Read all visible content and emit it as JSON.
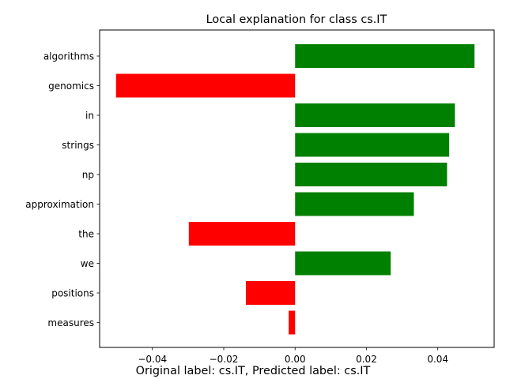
{
  "chart_data": {
    "type": "bar",
    "orientation": "horizontal",
    "title": "Local explanation for class cs.IT",
    "xlabel": "",
    "ylabel": "",
    "categories": [
      "algorithms",
      "genomics",
      "in",
      "strings",
      "np",
      "approximation",
      "the",
      "we",
      "positions",
      "measures"
    ],
    "values": [
      0.0503,
      -0.0502,
      0.0448,
      0.0432,
      0.0426,
      0.0333,
      -0.0298,
      0.0268,
      -0.0138,
      -0.0018
    ],
    "xlim": [
      -0.0548,
      0.0558
    ],
    "xticks": [
      -0.04,
      -0.02,
      0.0,
      0.02,
      0.04
    ],
    "xtick_labels": [
      "−0.04",
      "−0.02",
      "0.00",
      "0.02",
      "0.04"
    ],
    "positive_color": "#008000",
    "negative_color": "#ff0000",
    "grid": false
  },
  "footer": {
    "text": "Original label: cs.IT, Predicted label: cs.IT"
  }
}
